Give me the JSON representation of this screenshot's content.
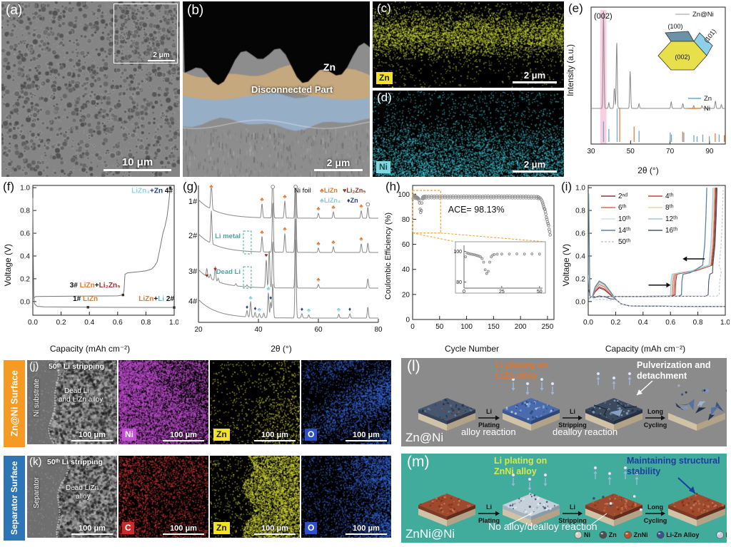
{
  "panels": {
    "a": {
      "label": "(a)",
      "scale": "10 μm",
      "inset_scale": "2 μm"
    },
    "b": {
      "label": "(b)",
      "zn": "Zn",
      "disconnected": "Disconnected Part",
      "scale": "2 μm"
    },
    "c": {
      "label": "(c)",
      "chip": "Zn",
      "scale": "2 μm"
    },
    "d": {
      "label": "(d)",
      "chip": "Ni",
      "scale": "2 μm"
    },
    "e": {
      "label": "(e)",
      "peak": "(002)",
      "series": "Zn@Ni",
      "facet_100": "(100)",
      "facet_101": "(101)",
      "facet_002": "(002)",
      "ref_zn": "Zn",
      "ref_ni": "Ni",
      "xlabel": "2θ (°)",
      "ylabel": "Intensity (a.u.)"
    },
    "f": {
      "label": "(f)",
      "xlabel": "Capacity (mAh cm⁻²)",
      "ylabel": "Voltage (V)",
      "ann4": [
        {
          "t": "LiZn₄",
          "c": "#8fd4e0"
        },
        {
          "t": "+Zn",
          "c": "#1f3b73"
        },
        {
          "t": " 4#",
          "c": "#111111"
        }
      ],
      "ann3": [
        {
          "t": "3# ",
          "c": "#111111"
        },
        {
          "t": "LiZn",
          "c": "#e07b2f"
        },
        {
          "t": "+",
          "c": "#111111"
        },
        {
          "t": "Li₂Zn₅",
          "c": "#a03028"
        }
      ],
      "ann1": [
        {
          "t": "1# ",
          "c": "#111111"
        },
        {
          "t": "LiZn",
          "c": "#e07b2f"
        }
      ],
      "ann2": [
        {
          "t": "LiZn",
          "c": "#e07b2f"
        },
        {
          "t": "+",
          "c": "#111111"
        },
        {
          "t": "Li",
          "c": "#5bc0d0"
        },
        {
          "t": " 2#",
          "c": "#111111"
        }
      ]
    },
    "g": {
      "label": "(g)",
      "xlabel": "2θ (°)",
      "nifoil": "Ni foil",
      "limetal": "Li metal",
      "deadli": "Dead Li",
      "legend": [
        {
          "sym": "♣",
          "t": "LiZn",
          "c": "#e07b2f"
        },
        {
          "sym": "♥",
          "t": "Li₂Zn₅",
          "c": "#a03028"
        },
        {
          "sym": "♣",
          "t": "LiZn₄",
          "c": "#85cfdc"
        },
        {
          "sym": "♦",
          "t": "Zn",
          "c": "#2b3f78"
        }
      ]
    },
    "h": {
      "label": "(h)",
      "xlabel": "Cycle Number",
      "ylabel": "Coulombic Efficiency (%)",
      "ace": "ACE= 98.13%"
    },
    "i": {
      "label": "(i)",
      "xlabel": "Capacity (mAh cm⁻²)",
      "ylabel": "Voltage (V)"
    },
    "j": {
      "side": "Zn@Ni Surface",
      "label": "(j)",
      "title": "50ᵗʰ Li stripping",
      "substrate": "Ni substrate",
      "dead1": "Dead Li",
      "dead2": "and LiZn alloy",
      "scale": "100 μm",
      "chips": [
        {
          "t": "Ni",
          "css": "background:#c44fd4;color:#fff"
        },
        {
          "t": "Zn",
          "css": "background:#f2e32a;color:#222"
        },
        {
          "t": "O",
          "css": "background:#2b50c8;color:#fff"
        }
      ]
    },
    "k": {
      "side": "Separator Surface",
      "label": "(k)",
      "title": "50ᵗʰ Li stripping",
      "substrate": "Separator",
      "dead1": "Dead LiZn",
      "dead2": "alloy",
      "scale": "100 μm",
      "chips": [
        {
          "t": "C",
          "css": "background:#cc2a2a;color:#fff"
        },
        {
          "t": "Zn",
          "css": "background:#f2e32a;color:#222"
        },
        {
          "t": "O",
          "css": "background:#2b50c8;color:#fff"
        }
      ]
    },
    "l": {
      "label": "(l)",
      "pn1": "Li plating on",
      "pn2": "LiZn alloy",
      "pulv1": "Pulverization and",
      "pulv2": "detachment",
      "alloy": "alloy reaction",
      "dealloy": "dealloy reaction",
      "name": "Zn@Ni",
      "steps": [
        [
          "Li",
          "Plating"
        ],
        [
          "Li",
          "Stripping"
        ],
        [
          "Long",
          "Cycling"
        ]
      ]
    },
    "m": {
      "label": "(m)",
      "pn1": "Li plating on",
      "pn2": "ZnNi alloy",
      "mt1": "Maintaining structural",
      "mt2": "stability",
      "noalloy": "No alloy/dealloy reaction",
      "name": "ZnNi@Ni",
      "steps": [
        [
          "Li",
          "Plating"
        ],
        [
          "Li",
          "Stripping"
        ],
        [
          "Long",
          "Cycling"
        ]
      ],
      "legend": [
        {
          "t": "Ni",
          "c": "#d6cfc0"
        },
        {
          "t": "Zn",
          "c": "#4f4f4f"
        },
        {
          "t": "ZnNi",
          "c": "#b05430"
        },
        {
          "t": "Li-Zn Alloy",
          "c": "#3d5288"
        },
        {
          "t": "Li",
          "c": "#c4cad6"
        }
      ]
    }
  },
  "chart_data": {
    "e": {
      "type": "line",
      "series_label": "Zn@Ni",
      "xlabel": "2θ (°)",
      "ylabel": "Intensity (a.u.)",
      "xlim": [
        30,
        98
      ],
      "xticks": [
        30,
        50,
        70,
        90
      ],
      "highlight": [
        34.6,
        37.8
      ],
      "highlight_color": "#f5aecb",
      "peaks": [
        [
          36.3,
          1.05
        ],
        [
          39,
          0.06
        ],
        [
          41.8,
          0.22
        ],
        [
          43,
          0.72
        ],
        [
          49.8,
          0.4
        ],
        [
          54.3,
          0.05
        ],
        [
          70.6,
          0.07
        ],
        [
          76.5,
          0.05
        ],
        [
          82,
          0.03
        ],
        [
          86.2,
          0.03
        ],
        [
          93,
          0.08
        ],
        [
          96,
          0.04
        ]
      ],
      "zn_ref": [
        [
          36.3,
          0.55
        ],
        [
          39,
          0.35
        ],
        [
          43.2,
          0.9
        ],
        [
          54.3,
          0.3
        ],
        [
          70.1,
          0.25
        ],
        [
          70.7,
          0.2
        ],
        [
          77,
          0.25
        ],
        [
          82.1,
          0.18
        ],
        [
          83.7,
          0.15
        ],
        [
          86.6,
          0.2
        ],
        [
          89.9,
          0.15
        ],
        [
          94.9,
          0.2
        ]
      ],
      "ni_ref": [
        [
          44.5,
          1
        ],
        [
          51.8,
          0.45
        ],
        [
          76.4,
          0.3
        ],
        [
          92.9,
          0.25
        ],
        [
          97.5,
          0.2
        ]
      ],
      "zn_color": "#6fa8c8",
      "ni_color": "#e8803c"
    },
    "f": {
      "type": "line",
      "xlim": [
        0,
        1
      ],
      "ylim": [
        -0.12,
        1.02
      ],
      "xticks": [
        0,
        0.2,
        0.4,
        0.6,
        0.8,
        1
      ],
      "yticks": [
        0,
        0.2,
        0.4,
        0.6,
        0.8,
        1
      ],
      "discharge": [
        [
          0,
          0.91
        ],
        [
          0.004,
          0.3
        ],
        [
          0.007,
          0.05
        ],
        [
          0.012,
          -0.02
        ],
        [
          0.03,
          -0.042
        ],
        [
          0.08,
          -0.047
        ],
        [
          0.39,
          -0.05
        ],
        [
          0.7,
          -0.051
        ],
        [
          1,
          -0.052
        ]
      ],
      "charge": [
        [
          0.005,
          0.03
        ],
        [
          0.02,
          0.045
        ],
        [
          0.3,
          0.048
        ],
        [
          0.6,
          0.05
        ],
        [
          0.638,
          0.058
        ],
        [
          0.645,
          0.1
        ],
        [
          0.652,
          0.24
        ],
        [
          0.67,
          0.252
        ],
        [
          0.75,
          0.262
        ],
        [
          0.8,
          0.27
        ],
        [
          0.84,
          0.285
        ],
        [
          0.86,
          0.31
        ],
        [
          0.88,
          0.35
        ],
        [
          0.9,
          0.47
        ],
        [
          0.92,
          0.6
        ],
        [
          0.935,
          0.66
        ],
        [
          0.95,
          0.75
        ],
        [
          0.96,
          0.85
        ],
        [
          0.968,
          0.95
        ],
        [
          0.972,
          1
        ]
      ],
      "markers": [
        [
          0.39,
          -0.05
        ],
        [
          1,
          -0.052
        ],
        [
          0.638,
          0.058
        ],
        [
          0.972,
          1
        ]
      ]
    },
    "g": {
      "type": "line",
      "xlim": [
        20,
        80
      ],
      "xticks": [
        20,
        40,
        60,
        80
      ],
      "box_x": [
        35,
        37.6
      ],
      "traces": [
        {
          "label": "1#",
          "peaks": [
            [
              24.3,
              1,
              "c1"
            ],
            [
              41.2,
              0.45,
              "c1"
            ],
            [
              44.8,
              1.6,
              "o"
            ],
            [
              48.8,
              0.55,
              "c1"
            ],
            [
              52.4,
              2.2,
              "o"
            ],
            [
              60,
              0.16,
              "c1"
            ],
            [
              65,
              0.2,
              "c1"
            ],
            [
              74.3,
              0.24,
              "c1"
            ],
            [
              76.5,
              0.35,
              "o"
            ]
          ]
        },
        {
          "label": "2#",
          "peaks": [
            [
              24.3,
              1.05,
              ""
            ],
            [
              41.2,
              0.5,
              "c1"
            ],
            [
              44.8,
              1.6,
              ""
            ],
            [
              48.8,
              0.6,
              "c1"
            ],
            [
              52.4,
              2.2,
              ""
            ],
            [
              60,
              0.14,
              "c1"
            ],
            [
              65,
              0.18,
              "c1"
            ],
            [
              74.3,
              0.28,
              "c1"
            ],
            [
              76.5,
              0.3,
              ""
            ]
          ]
        },
        {
          "label": "3#",
          "peaks": [
            [
              22.8,
              0.25,
              "h"
            ],
            [
              24,
              0.14,
              ""
            ],
            [
              25.6,
              0.45,
              "h"
            ],
            [
              26.6,
              0.12,
              ""
            ],
            [
              32.5,
              0.07,
              ""
            ],
            [
              36.2,
              0.06,
              ""
            ],
            [
              42.6,
              0.9,
              "h"
            ],
            [
              43.6,
              1.2,
              ""
            ],
            [
              44.8,
              1.5,
              ""
            ],
            [
              52.4,
              2.2,
              ""
            ],
            [
              60,
              0.12,
              "c1"
            ],
            [
              76.5,
              0.3,
              ""
            ]
          ]
        },
        {
          "label": "4#",
          "peaks": [
            [
              36.2,
              0.2,
              "d"
            ],
            [
              37.4,
              0.5,
              "c2"
            ],
            [
              38.9,
              0.16,
              "d"
            ],
            [
              40.3,
              0.12,
              "c2"
            ],
            [
              41.8,
              0.14,
              ""
            ],
            [
              43.3,
              0.8,
              "c2"
            ],
            [
              44.1,
              0.5,
              "d"
            ],
            [
              44.8,
              1.1,
              ""
            ],
            [
              52.4,
              2.5,
              ""
            ],
            [
              54.5,
              0.14,
              "d"
            ],
            [
              56.8,
              0.1,
              "c2"
            ],
            [
              66.8,
              0.12,
              "c2"
            ],
            [
              70.5,
              0.14,
              "d"
            ],
            [
              76.5,
              0.35,
              ""
            ]
          ]
        }
      ]
    },
    "h": {
      "type": "scatter",
      "xlim": [
        0,
        262
      ],
      "ylim": [
        0,
        107
      ],
      "xticks": [
        0,
        50,
        100,
        150,
        200,
        250
      ],
      "yticks": [
        0,
        20,
        40,
        60,
        80,
        100
      ],
      "points": [
        [
          1,
          96.5
        ],
        [
          2,
          99
        ],
        [
          3,
          98.7
        ],
        [
          4,
          98.4
        ],
        [
          5,
          98.2
        ],
        [
          6,
          98
        ],
        [
          7,
          97.8
        ],
        [
          8,
          97.5
        ],
        [
          9,
          97.2
        ],
        [
          10,
          96.9
        ],
        [
          11,
          96.4
        ],
        [
          12,
          95.3
        ],
        [
          13,
          93
        ],
        [
          14,
          88
        ],
        [
          15,
          85.5
        ],
        [
          16,
          87
        ],
        [
          17,
          93
        ],
        [
          18,
          96.5
        ],
        [
          19,
          97.6
        ],
        [
          20,
          98
        ],
        [
          22,
          98.2
        ],
        [
          25,
          98.3
        ],
        [
          30,
          98.3
        ],
        [
          35,
          98.4
        ],
        [
          40,
          98.3
        ],
        [
          45,
          98.4
        ],
        [
          50,
          98.3
        ],
        [
          55,
          98.4
        ],
        [
          60,
          98.4
        ],
        [
          65,
          98.3
        ],
        [
          70,
          98.3
        ],
        [
          75,
          98.4
        ],
        [
          80,
          98.4
        ],
        [
          85,
          98.3
        ],
        [
          90,
          98.3
        ],
        [
          95,
          98.4
        ],
        [
          100,
          98.4
        ],
        [
          105,
          98.3
        ],
        [
          110,
          98.3
        ],
        [
          115,
          98.4
        ],
        [
          120,
          98.4
        ],
        [
          125,
          98.3
        ],
        [
          130,
          98.3
        ],
        [
          135,
          98.4
        ],
        [
          140,
          98.4
        ],
        [
          145,
          98.3
        ],
        [
          150,
          98.3
        ],
        [
          155,
          98.4
        ],
        [
          160,
          98.4
        ],
        [
          165,
          98.3
        ],
        [
          170,
          98.3
        ],
        [
          175,
          98.4
        ],
        [
          180,
          98.4
        ],
        [
          185,
          98.3
        ],
        [
          190,
          98.3
        ],
        [
          195,
          98.3
        ],
        [
          200,
          98.3
        ],
        [
          205,
          98.3
        ],
        [
          210,
          98.3
        ],
        [
          215,
          98.2
        ],
        [
          220,
          98.2
        ],
        [
          225,
          98.2
        ],
        [
          230,
          98.1
        ],
        [
          233,
          97.8
        ],
        [
          236,
          97
        ],
        [
          238,
          96
        ],
        [
          240,
          94.5
        ],
        [
          241,
          93
        ],
        [
          242,
          91.5
        ],
        [
          243,
          90
        ],
        [
          244,
          88.5
        ],
        [
          245,
          88
        ],
        [
          246,
          86
        ],
        [
          247,
          84
        ],
        [
          248,
          81.5
        ],
        [
          249,
          80
        ],
        [
          250,
          78
        ],
        [
          251,
          76.5
        ],
        [
          252,
          75
        ],
        [
          253,
          72
        ],
        [
          254,
          70
        ],
        [
          255,
          67.5
        ]
      ],
      "inset": {
        "xlim": [
          0,
          52
        ],
        "ylim": [
          76,
          104
        ],
        "xticks": [
          0,
          25,
          50
        ],
        "yticks": [
          80,
          100
        ]
      }
    },
    "i": {
      "type": "line",
      "xlim": [
        0,
        1
      ],
      "ylim": [
        -0.12,
        1.02
      ],
      "xticks": [
        0,
        0.2,
        0.4,
        0.6,
        0.8,
        1
      ],
      "yticks": [
        0,
        0.2,
        0.4,
        0.6,
        0.8,
        1
      ],
      "series": [
        {
          "label": "2ⁿᵈ",
          "color": "#8b3a3a",
          "step": 0.635,
          "end": 0.935,
          "hump": 0.12
        },
        {
          "label": "4ᵗʰ",
          "color": "#c04737",
          "step": 0.625,
          "end": 0.93,
          "hump": 0.13
        },
        {
          "label": "6ᵗʰ",
          "color": "#d96f4e",
          "step": 0.615,
          "end": 0.925,
          "hump": 0.15
        },
        {
          "label": "8ᵗʰ",
          "color": "#ecd3a8",
          "step": 0.61,
          "end": 0.92,
          "hump": 0.16
        },
        {
          "label": "10ᵗʰ",
          "color": "#cfe3e8",
          "step": 0.605,
          "end": 0.915,
          "hump": 0.17
        },
        {
          "label": "12ᵗʰ",
          "color": "#a9c6d6",
          "step": 0.6,
          "end": 0.91,
          "hump": 0.17
        },
        {
          "label": "14ᵗʰ",
          "color": "#5d81a8",
          "step": 0.68,
          "end": 0.865,
          "hump": 0.18,
          "spike": true
        },
        {
          "label": "16ᵗʰ",
          "color": "#49586b",
          "step": 0.875,
          "end": 0.94,
          "hump": 0.05
        },
        {
          "label": "50ᵗʰ",
          "color": "#c3cad0",
          "step": 0.955,
          "end": 0.985,
          "hump": 0.02,
          "dash": true
        }
      ]
    }
  }
}
